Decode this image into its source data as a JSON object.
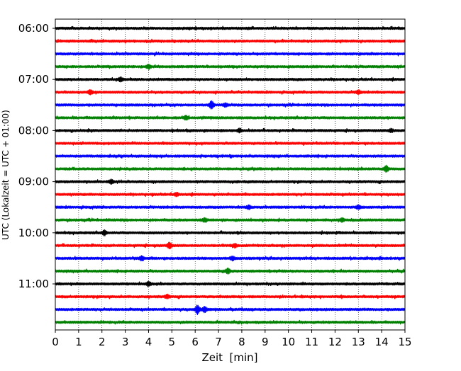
{
  "chart_data": {
    "type": "line",
    "title": "",
    "xlabel": "Zeit  [min]",
    "ylabel": "UTC (Lokalzeit = UTC + 01:00)",
    "xlim": [
      0,
      15
    ],
    "x_ticks": [
      0,
      1,
      2,
      3,
      4,
      5,
      6,
      7,
      8,
      9,
      10,
      11,
      12,
      13,
      14,
      15
    ],
    "grid": "vertical dotted",
    "y_tick_labels": [
      "06:00",
      "07:00",
      "08:00",
      "09:00",
      "10:00",
      "11:00"
    ],
    "line_colors": [
      "#000000",
      "#ff0000",
      "#0000ff",
      "#008000"
    ],
    "start_time": "06:00",
    "trace_interval_min": 15,
    "trace_count": 24,
    "events": [
      {
        "trace": 3,
        "x": 4.0,
        "amp": 2.0
      },
      {
        "trace": 4,
        "x": 2.8,
        "amp": 2.2
      },
      {
        "trace": 5,
        "x": 1.5,
        "amp": 2.4
      },
      {
        "trace": 5,
        "x": 13.0,
        "amp": 2.0
      },
      {
        "trace": 6,
        "x": 6.7,
        "amp": 4.5
      },
      {
        "trace": 6,
        "x": 7.3,
        "amp": 2.0
      },
      {
        "trace": 7,
        "x": 5.6,
        "amp": 2.2
      },
      {
        "trace": 8,
        "x": 7.9,
        "amp": 2.0
      },
      {
        "trace": 8,
        "x": 14.4,
        "amp": 1.8
      },
      {
        "trace": 11,
        "x": 14.2,
        "amp": 3.5
      },
      {
        "trace": 12,
        "x": 2.4,
        "amp": 2.2
      },
      {
        "trace": 13,
        "x": 5.2,
        "amp": 2.0
      },
      {
        "trace": 14,
        "x": 8.3,
        "amp": 2.0
      },
      {
        "trace": 14,
        "x": 13.0,
        "amp": 2.0
      },
      {
        "trace": 15,
        "x": 6.4,
        "amp": 2.0
      },
      {
        "trace": 15,
        "x": 12.3,
        "amp": 2.0
      },
      {
        "trace": 16,
        "x": 2.1,
        "amp": 2.6
      },
      {
        "trace": 17,
        "x": 4.9,
        "amp": 3.5
      },
      {
        "trace": 17,
        "x": 7.7,
        "amp": 2.0
      },
      {
        "trace": 18,
        "x": 3.7,
        "amp": 2.6
      },
      {
        "trace": 18,
        "x": 7.6,
        "amp": 2.2
      },
      {
        "trace": 19,
        "x": 7.4,
        "amp": 3.0
      },
      {
        "trace": 20,
        "x": 4.0,
        "amp": 2.2
      },
      {
        "trace": 21,
        "x": 4.8,
        "amp": 2.0
      },
      {
        "trace": 22,
        "x": 6.1,
        "amp": 5.0
      },
      {
        "trace": 22,
        "x": 6.4,
        "amp": 3.0
      }
    ]
  }
}
